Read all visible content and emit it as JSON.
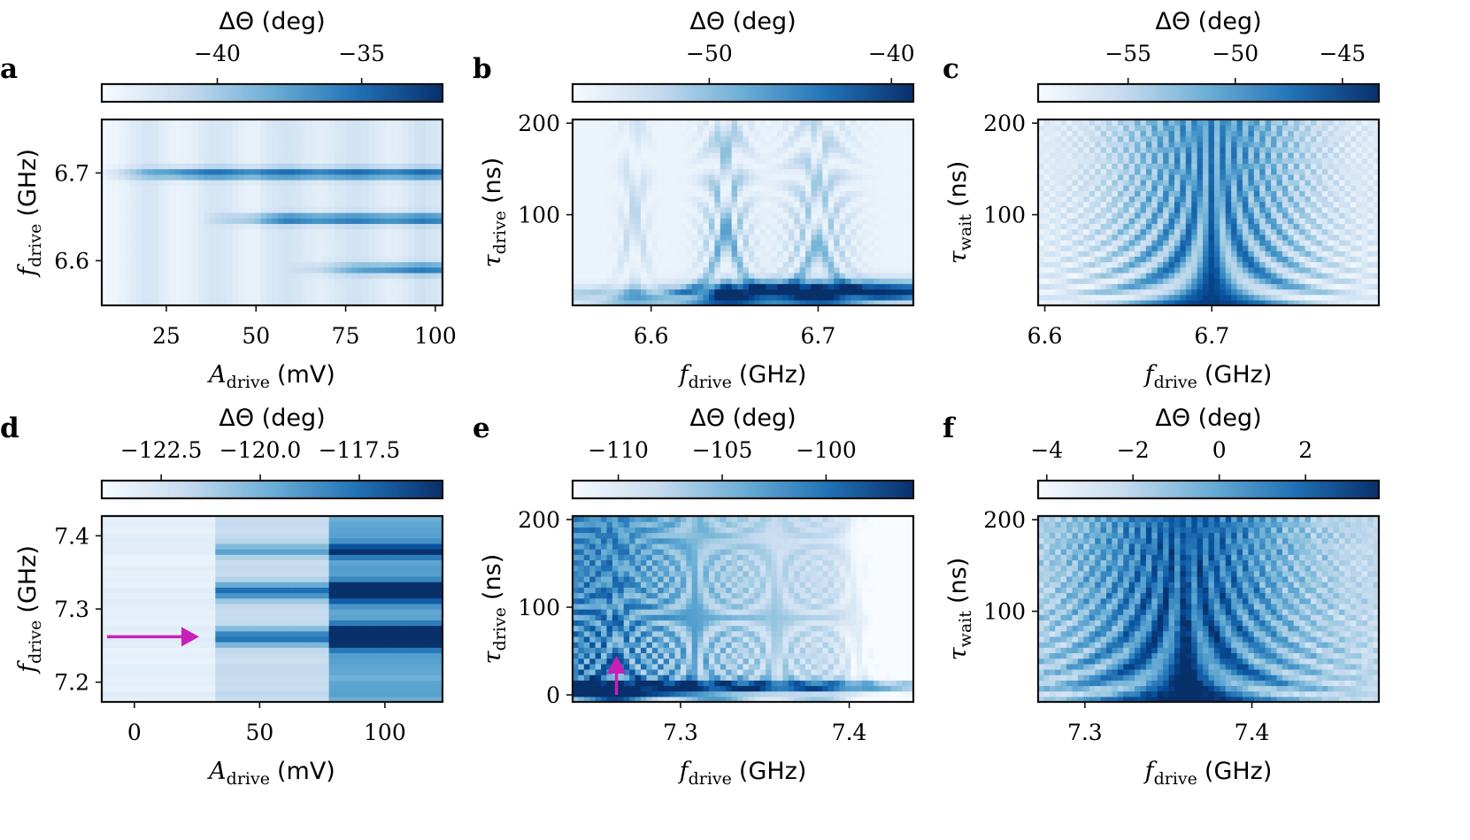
{
  "chart_data": [
    {
      "id": "a",
      "type": "heatmap",
      "panel_label": "a",
      "colorbar": {
        "title": "ΔΘ (deg)",
        "range": [
          -44,
          -32.2
        ],
        "ticks": [
          -40,
          -35
        ],
        "tick_labels": [
          "−40",
          "−35"
        ]
      },
      "x": {
        "var": "A",
        "sub": "drive",
        "unit": "(mV)",
        "range": [
          7,
          102
        ],
        "ticks": [
          25,
          50,
          75,
          100
        ],
        "tick_labels": [
          "25",
          "50",
          "75",
          "100"
        ]
      },
      "y": {
        "var": "f",
        "sub": "drive",
        "unit": "(GHz)",
        "range": [
          6.549,
          6.761
        ],
        "ticks": [
          6.6,
          6.7
        ],
        "tick_labels": [
          "6.6",
          "6.7"
        ]
      },
      "features": "horizontal resonance lines near 6.70, 6.65 and 6.59 GHz appearing as drive amplitude increases"
    },
    {
      "id": "b",
      "type": "heatmap",
      "panel_label": "b",
      "colorbar": {
        "title": "ΔΘ (deg)",
        "range": [
          -57.5,
          -38.8
        ],
        "ticks": [
          -50,
          -40
        ],
        "tick_labels": [
          "−50",
          "−40"
        ]
      },
      "x": {
        "var": "f",
        "sub": "drive",
        "unit": "(GHz)",
        "range": [
          6.553,
          6.757
        ],
        "ticks": [
          6.6,
          6.7
        ],
        "tick_labels": [
          "6.6",
          "6.7"
        ]
      },
      "y": {
        "var": "τ",
        "sub": "drive",
        "unit": "(ns)",
        "range": [
          1,
          204
        ],
        "ticks": [
          100,
          200
        ],
        "tick_labels": [
          "100",
          "200"
        ]
      },
      "features": "Rabi-like oscillations centred near 6.59, 6.645 and 6.70 GHz"
    },
    {
      "id": "c",
      "type": "heatmap",
      "panel_label": "c",
      "colorbar": {
        "title": "ΔΘ (deg)",
        "range": [
          -59.2,
          -43.3
        ],
        "ticks": [
          -55,
          -50,
          -45
        ],
        "tick_labels": [
          "−55",
          "−50",
          "−45"
        ]
      },
      "x": {
        "var": "f",
        "sub": "drive",
        "unit": "(GHz)",
        "range": [
          6.596,
          6.8
        ],
        "ticks": [
          6.6,
          6.7
        ],
        "tick_labels": [
          "6.6",
          "6.7"
        ]
      },
      "y": {
        "var": "τ",
        "sub": "wait",
        "unit": "(ns)",
        "range": [
          1,
          204
        ],
        "ticks": [
          100,
          200
        ],
        "tick_labels": [
          "100",
          "200"
        ]
      },
      "features": "Ramsey fringes centred at 6.70 GHz"
    },
    {
      "id": "d",
      "type": "heatmap",
      "panel_label": "d",
      "colorbar": {
        "title": "ΔΘ (deg)",
        "range": [
          -124,
          -115.4
        ],
        "ticks": [
          -122.5,
          -120.0,
          -117.5
        ],
        "tick_labels": [
          "−122.5",
          "−120.0",
          "−117.5"
        ]
      },
      "x": {
        "var": "A",
        "sub": "drive",
        "unit": "(mV)",
        "range": [
          -13,
          123
        ],
        "ticks": [
          0,
          50,
          100
        ],
        "tick_labels": [
          "0",
          "50",
          "100"
        ]
      },
      "y": {
        "var": "f",
        "sub": "drive",
        "unit": "(GHz)",
        "range": [
          7.173,
          7.427
        ],
        "ticks": [
          7.2,
          7.3,
          7.4
        ],
        "tick_labels": [
          "7.2",
          "7.3",
          "7.4"
        ]
      },
      "annotation": {
        "type": "arrow",
        "direction": "right",
        "color": "#c71fb8",
        "at_y": 7.262
      },
      "features": "resonance lines near 7.38, 7.325 and 7.262 GHz at drive amplitudes above ~33 mV"
    },
    {
      "id": "e",
      "type": "heatmap",
      "panel_label": "e",
      "colorbar": {
        "title": "ΔΘ (deg)",
        "range": [
          -112.2,
          -95.8
        ],
        "ticks": [
          -110,
          -105,
          -100
        ],
        "tick_labels": [
          "−110",
          "−105",
          "−100"
        ]
      },
      "x": {
        "var": "f",
        "sub": "drive",
        "unit": "(GHz)",
        "range": [
          7.236,
          7.438
        ],
        "ticks": [
          7.3,
          7.4
        ],
        "tick_labels": [
          "7.3",
          "7.4"
        ]
      },
      "y": {
        "var": "τ",
        "sub": "drive",
        "unit": "(ns)",
        "range": [
          -8,
          204
        ],
        "ticks": [
          0,
          100,
          200
        ],
        "tick_labels": [
          "0",
          "100",
          "200"
        ]
      },
      "annotation": {
        "type": "arrow",
        "direction": "up",
        "color": "#c71fb8",
        "at_x": 7.262
      },
      "features": "chevron of Rabi oscillations around 7.26 GHz"
    },
    {
      "id": "f",
      "type": "heatmap",
      "panel_label": "f",
      "colorbar": {
        "title": "ΔΘ (deg)",
        "range": [
          -4.2,
          3.7
        ],
        "ticks": [
          -4,
          -2,
          0,
          2
        ],
        "tick_labels": [
          "−4",
          "−2",
          "0",
          "2"
        ]
      },
      "x": {
        "var": "f",
        "sub": "drive",
        "unit": "(GHz)",
        "range": [
          7.272,
          7.476
        ],
        "ticks": [
          7.3,
          7.4
        ],
        "tick_labels": [
          "7.3",
          "7.4"
        ]
      },
      "y": {
        "var": "τ",
        "sub": "wait",
        "unit": "(ns)",
        "range": [
          1,
          204
        ],
        "ticks": [
          100,
          200
        ],
        "tick_labels": [
          "100",
          "200"
        ]
      },
      "features": "Ramsey fringes centred near 7.36 GHz"
    }
  ],
  "colormap": {
    "low": "#f7fbff",
    "high": "#08306b"
  },
  "arrow_color": "#c71fb8"
}
